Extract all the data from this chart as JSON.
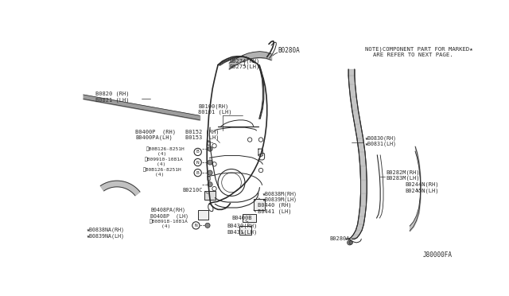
{
  "bg_color": "#ffffff",
  "line_color": "#2a2a2a",
  "note_line1": "NOTE)COMPONENT PART FOR MARKED★",
  "note_line2": "ARE REFER TO NEXT PAGE.",
  "diagram_code": "J80000FA",
  "figsize": [
    6.4,
    3.72
  ],
  "dpi": 100
}
